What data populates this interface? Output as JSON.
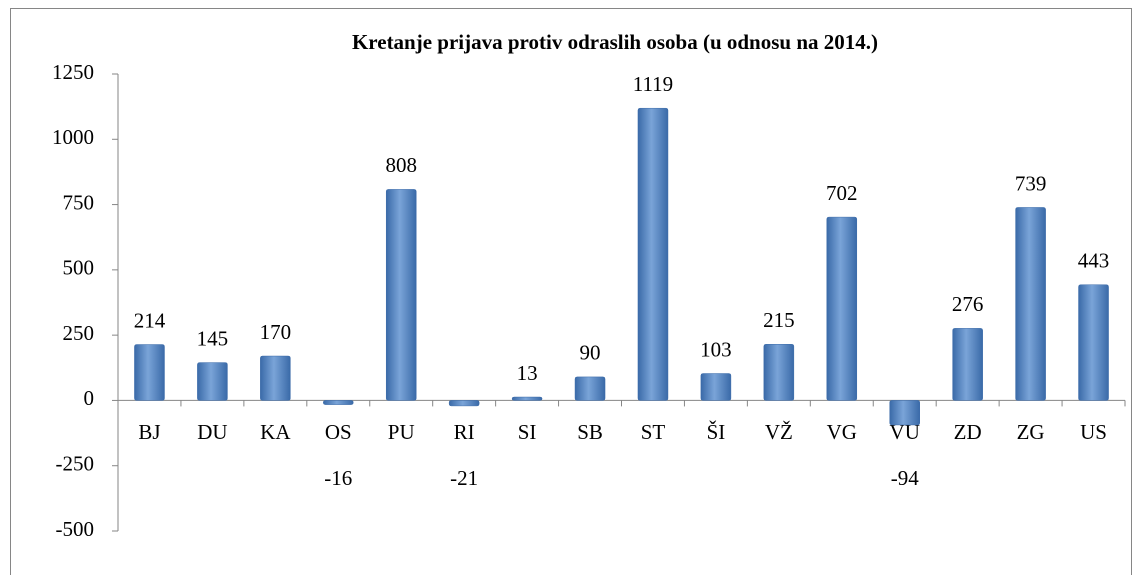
{
  "chart_data": {
    "type": "bar",
    "title": "Kretanje prijava protiv odraslih osoba (u odnosu na 2014.)",
    "categories": [
      "BJ",
      "DU",
      "KA",
      "OS",
      "PU",
      "RI",
      "SI",
      "SB",
      "ST",
      "ŠI",
      "VŽ",
      "VG",
      "VU",
      "ZD",
      "ZG",
      "US"
    ],
    "values": [
      214,
      145,
      170,
      -16,
      808,
      -21,
      13,
      90,
      1119,
      103,
      215,
      702,
      -94,
      276,
      739,
      443
    ],
    "color": "#4f81bd",
    "ylim": [
      -500,
      1250
    ],
    "yticks": [
      -500,
      -250,
      0,
      250,
      500,
      750,
      1000,
      1250
    ],
    "grid": false
  }
}
